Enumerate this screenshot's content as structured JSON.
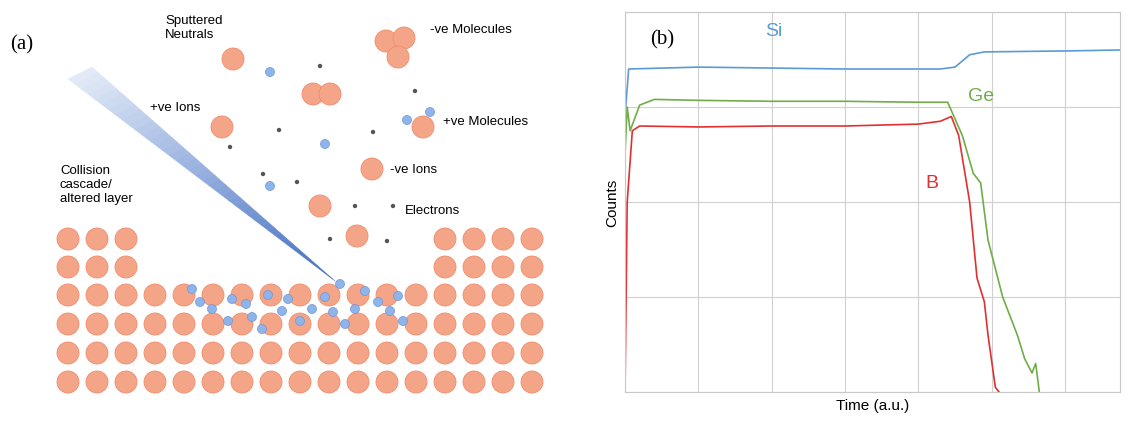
{
  "diagram": {
    "panel_label": "(a)",
    "labels": {
      "sputtered_neutrals": "Sputtered\nNeutrals",
      "neg_molecules": "-ve Molecules",
      "pos_ions": "+ve Ions",
      "pos_molecules": "+ve Molecules",
      "neg_ions": "-ve Ions",
      "electrons": "Electrons",
      "cascade": "Collision\ncascade/\naltered layer"
    }
  },
  "chart_data": {
    "type": "line",
    "panel_label": "(b)",
    "x_label": "Time (a.u.)",
    "y_label": "Counts",
    "xlim": [
      0,
      6.75
    ],
    "xticks": [
      0,
      1,
      2,
      3,
      4,
      5,
      6
    ],
    "ylim": [
      0,
      4
    ],
    "yticks": [
      0,
      1,
      2,
      3,
      4
    ],
    "grid": true,
    "tick_labels": false,
    "series": [
      {
        "name": "Si",
        "color": "#5b9bd5",
        "x": [
          0,
          0.05,
          1,
          2,
          3,
          4.3,
          4.5,
          4.7,
          4.9,
          6,
          6.75
        ],
        "values": [
          2.9,
          3.4,
          3.42,
          3.41,
          3.4,
          3.4,
          3.42,
          3.55,
          3.58,
          3.59,
          3.6
        ]
      },
      {
        "name": "Ge",
        "color": "#70ad47",
        "x": [
          0,
          0.03,
          0.07,
          0.2,
          0.4,
          1,
          2,
          3,
          4,
          4.4,
          4.6,
          4.75,
          4.85,
          4.95,
          5.05,
          5.15,
          5.25,
          5.35,
          5.45,
          5.55,
          5.6,
          5.65
        ],
        "values": [
          2.5,
          3.0,
          2.75,
          3.02,
          3.08,
          3.07,
          3.06,
          3.06,
          3.05,
          3.05,
          2.7,
          2.3,
          2.2,
          1.6,
          1.3,
          1.0,
          0.8,
          0.6,
          0.35,
          0.2,
          0.3,
          0.0
        ]
      },
      {
        "name": "B",
        "color": "#e03030",
        "x": [
          0,
          0.03,
          0.1,
          0.2,
          1,
          2,
          3,
          4,
          4.3,
          4.45,
          4.55,
          4.7,
          4.8,
          4.9,
          4.95,
          5.05,
          5.1
        ],
        "values": [
          0.0,
          2.0,
          2.75,
          2.8,
          2.79,
          2.8,
          2.8,
          2.82,
          2.85,
          2.9,
          2.7,
          2.0,
          1.2,
          0.95,
          0.6,
          0.05,
          0.0
        ]
      }
    ]
  }
}
